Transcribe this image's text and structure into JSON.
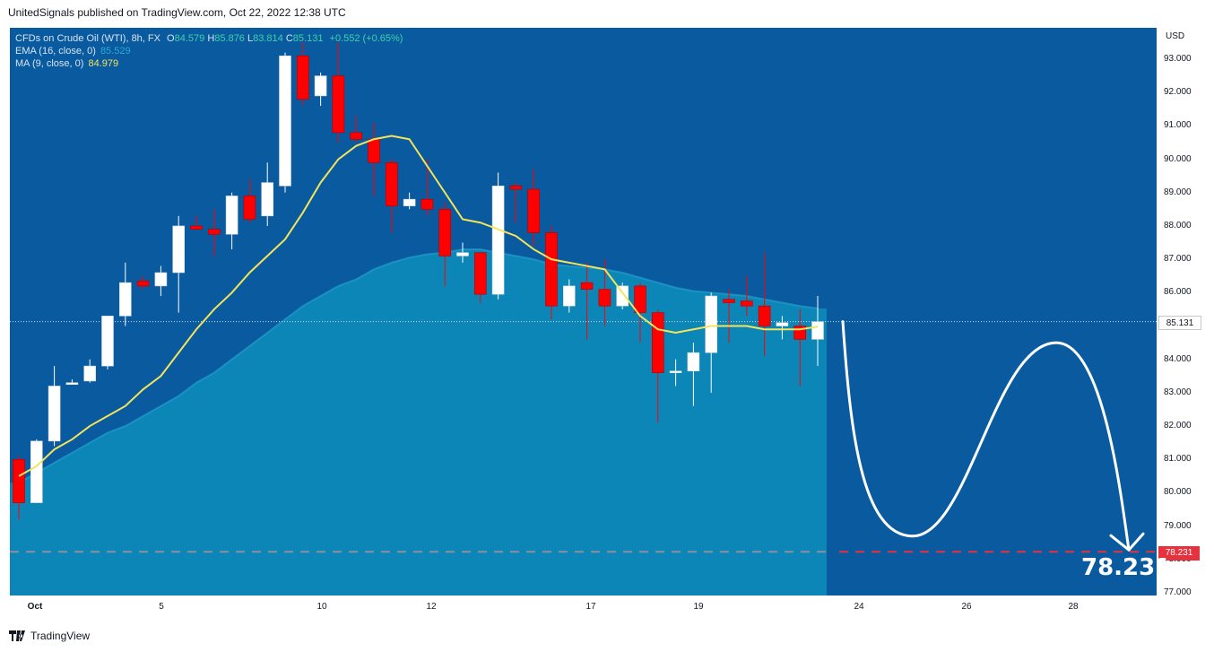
{
  "header": {
    "published_by": "UnitedSignals published on TradingView.com, Oct 22, 2022 12:38 UTC"
  },
  "legend": {
    "symbol": "CFDs on Crude Oil (WTI), 8h, FX",
    "o_label": "O",
    "o_value": "84.579",
    "h_label": "H",
    "h_value": "85.876",
    "l_label": "L",
    "l_value": "83.814",
    "c_label": "C",
    "c_value": "85.131",
    "change": "+0.552 (+0.65%)",
    "ema_label": "EMA (16, close, 0)",
    "ema_value": "85.529",
    "ma_label": "MA (9, close, 0)",
    "ma_value": "84.979"
  },
  "axis": {
    "currency": "USD",
    "y_ticks": [
      "93.000",
      "92.000",
      "91.000",
      "90.000",
      "89.000",
      "88.000",
      "87.000",
      "86.000",
      "85.000",
      "84.000",
      "83.000",
      "82.000",
      "81.000",
      "80.000",
      "79.000",
      "78.000",
      "77.000"
    ],
    "x_ticks": [
      "Oct",
      "5",
      "10",
      "12",
      "17",
      "19",
      "24",
      "26",
      "28"
    ]
  },
  "price_label": "85.131",
  "target_label": "78.231",
  "target_big": "78.231",
  "branding": "TradingView",
  "colors": {
    "background": "#0a5aa0",
    "up_candle": "#ffffff",
    "down_candle": "#ff0000",
    "ema": "#2aa9d4",
    "ma": "#f4e45a",
    "target_line": "#e5323e"
  },
  "chart_data": {
    "type": "candlestick",
    "timeframe": "8h",
    "ylim": [
      77.0,
      93.6
    ],
    "candles": [
      {
        "o": 81.0,
        "h": 81.1,
        "l": 79.2,
        "c": 79.7
      },
      {
        "o": 79.7,
        "h": 81.6,
        "l": 79.7,
        "c": 81.55
      },
      {
        "o": 81.55,
        "h": 83.8,
        "l": 81.4,
        "c": 83.2
      },
      {
        "o": 83.25,
        "h": 83.4,
        "l": 83.25,
        "c": 83.3
      },
      {
        "o": 83.35,
        "h": 84.0,
        "l": 83.3,
        "c": 83.8
      },
      {
        "o": 83.8,
        "h": 85.2,
        "l": 83.7,
        "c": 85.3
      },
      {
        "o": 85.3,
        "h": 86.9,
        "l": 85.0,
        "c": 86.3
      },
      {
        "o": 86.35,
        "h": 86.5,
        "l": 86.1,
        "c": 86.2
      },
      {
        "o": 86.2,
        "h": 86.8,
        "l": 85.9,
        "c": 86.6
      },
      {
        "o": 86.6,
        "h": 88.3,
        "l": 85.4,
        "c": 88.0
      },
      {
        "o": 88.0,
        "h": 88.3,
        "l": 87.9,
        "c": 87.9
      },
      {
        "o": 87.9,
        "h": 88.5,
        "l": 87.1,
        "c": 87.75
      },
      {
        "o": 87.75,
        "h": 89.0,
        "l": 87.3,
        "c": 88.9
      },
      {
        "o": 88.9,
        "h": 89.4,
        "l": 88.1,
        "c": 88.2
      },
      {
        "o": 88.3,
        "h": 89.9,
        "l": 88.0,
        "c": 89.3
      },
      {
        "o": 89.2,
        "h": 93.2,
        "l": 89.0,
        "c": 93.1
      },
      {
        "o": 93.1,
        "h": 93.5,
        "l": 91.6,
        "c": 91.8
      },
      {
        "o": 91.9,
        "h": 92.6,
        "l": 91.6,
        "c": 92.5
      },
      {
        "o": 92.5,
        "h": 93.5,
        "l": 90.5,
        "c": 90.8
      },
      {
        "o": 90.8,
        "h": 91.3,
        "l": 90.5,
        "c": 90.6
      },
      {
        "o": 90.6,
        "h": 91.1,
        "l": 88.9,
        "c": 89.9
      },
      {
        "o": 89.9,
        "h": 90.0,
        "l": 87.8,
        "c": 88.6
      },
      {
        "o": 88.6,
        "h": 89.0,
        "l": 88.5,
        "c": 88.8
      },
      {
        "o": 88.8,
        "h": 90.0,
        "l": 88.3,
        "c": 88.5
      },
      {
        "o": 88.5,
        "h": 88.7,
        "l": 86.2,
        "c": 87.1
      },
      {
        "o": 87.1,
        "h": 87.5,
        "l": 86.9,
        "c": 87.2
      },
      {
        "o": 87.2,
        "h": 87.2,
        "l": 85.7,
        "c": 85.95
      },
      {
        "o": 85.95,
        "h": 89.6,
        "l": 85.8,
        "c": 89.2
      },
      {
        "o": 89.2,
        "h": 89.3,
        "l": 88.1,
        "c": 89.1
      },
      {
        "o": 89.1,
        "h": 89.7,
        "l": 87.4,
        "c": 87.8
      },
      {
        "o": 87.8,
        "h": 88.0,
        "l": 85.2,
        "c": 85.6
      },
      {
        "o": 85.6,
        "h": 86.4,
        "l": 85.4,
        "c": 86.2
      },
      {
        "o": 86.3,
        "h": 86.9,
        "l": 84.6,
        "c": 86.1
      },
      {
        "o": 86.1,
        "h": 87.0,
        "l": 85.0,
        "c": 85.6
      },
      {
        "o": 85.6,
        "h": 86.3,
        "l": 85.5,
        "c": 86.2
      },
      {
        "o": 86.2,
        "h": 86.3,
        "l": 84.5,
        "c": 85.4
      },
      {
        "o": 85.4,
        "h": 85.5,
        "l": 82.1,
        "c": 83.6
      },
      {
        "o": 83.65,
        "h": 84.0,
        "l": 83.2,
        "c": 83.65
      },
      {
        "o": 83.65,
        "h": 84.5,
        "l": 82.6,
        "c": 84.2
      },
      {
        "o": 84.2,
        "h": 86.0,
        "l": 83.0,
        "c": 85.9
      },
      {
        "o": 85.8,
        "h": 86.1,
        "l": 84.5,
        "c": 85.7
      },
      {
        "o": 85.75,
        "h": 86.5,
        "l": 85.3,
        "c": 85.6
      },
      {
        "o": 85.6,
        "h": 87.2,
        "l": 84.1,
        "c": 85.0
      },
      {
        "o": 85.0,
        "h": 85.3,
        "l": 84.6,
        "c": 85.1
      },
      {
        "o": 85.0,
        "h": 85.5,
        "l": 83.2,
        "c": 84.6
      },
      {
        "o": 84.6,
        "h": 85.9,
        "l": 83.8,
        "c": 85.131
      }
    ],
    "ema16": [
      80.3,
      80.6,
      80.9,
      81.2,
      81.5,
      81.8,
      82.0,
      82.3,
      82.6,
      82.9,
      83.3,
      83.6,
      84.0,
      84.4,
      84.8,
      85.2,
      85.6,
      85.9,
      86.2,
      86.4,
      86.7,
      86.9,
      87.05,
      87.15,
      87.2,
      87.3,
      87.3,
      87.2,
      87.1,
      87.0,
      86.85,
      86.8,
      86.75,
      86.7,
      86.6,
      86.45,
      86.3,
      86.15,
      86.05,
      86.0,
      85.95,
      85.9,
      85.8,
      85.7,
      85.6,
      85.529
    ],
    "ma9": [
      80.5,
      80.8,
      81.3,
      81.6,
      82.0,
      82.3,
      82.6,
      83.1,
      83.5,
      84.2,
      84.9,
      85.5,
      86.0,
      86.6,
      87.1,
      87.6,
      88.4,
      89.3,
      90.0,
      90.4,
      90.6,
      90.7,
      90.6,
      89.8,
      89.0,
      88.2,
      88.1,
      87.9,
      87.7,
      87.3,
      87.0,
      86.9,
      86.8,
      86.7,
      86.0,
      85.3,
      84.9,
      84.8,
      84.9,
      85.0,
      85.0,
      85.0,
      84.9,
      84.9,
      84.9,
      84.979
    ],
    "current_price": 85.131,
    "target": 78.231,
    "projection": "drop to ~78.7, rebound to ~84.5, then fall to 78.231 target"
  }
}
